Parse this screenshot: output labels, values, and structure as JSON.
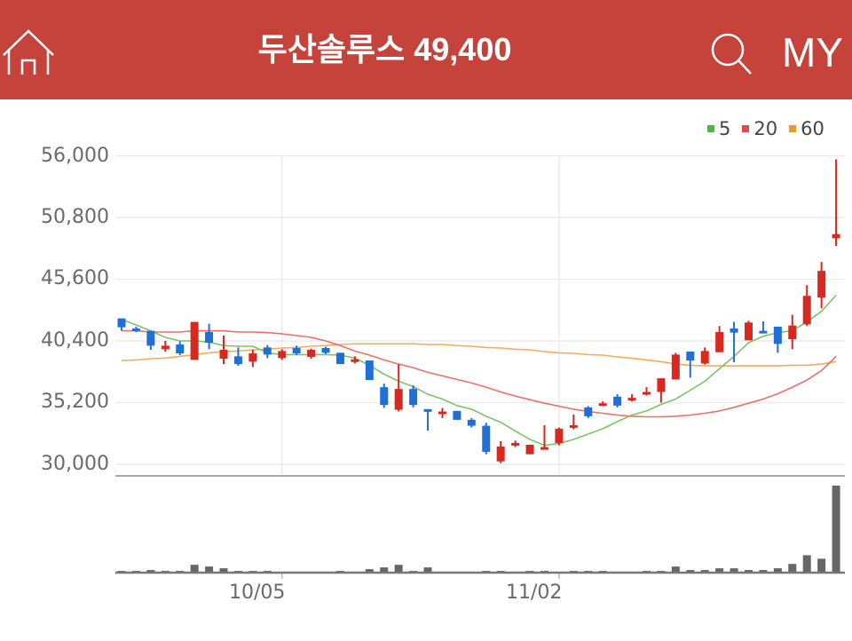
{
  "header": {
    "stock_name": "두산솔루스",
    "price": "49,400",
    "home_icon": "home-icon",
    "search_icon": "search-icon",
    "my_label": "MY"
  },
  "colors": {
    "header_bg": "#c5433a",
    "up": "#d9281f",
    "down": "#1f6fd6",
    "ma5": "#7cc46a",
    "ma20": "#ea6f6d",
    "ma60": "#f2ac5e",
    "volume": "#666666",
    "grid": "#ececec",
    "axis": "#a8a8a8"
  },
  "chart_data": {
    "type": "candlestick",
    "title": "두산솔루스 49,400",
    "xlabel": "",
    "ylabel": "",
    "grid": true,
    "ylim": [
      30000,
      56000
    ],
    "legend": [
      {
        "label": "5",
        "color": "#4cb53f"
      },
      {
        "label": "20",
        "color": "#e0484b"
      },
      {
        "label": "60",
        "color": "#f0962e"
      }
    ],
    "legend_position": "top-right",
    "y_ticks": [
      "56,000",
      "50,800",
      "45,600",
      "40,400",
      "35,200",
      "30,000"
    ],
    "y_tick_values": [
      56000,
      50800,
      45600,
      40400,
      35200,
      30000
    ],
    "x_ticks": [
      {
        "label": "10/05",
        "index": 11
      },
      {
        "label": "11/02",
        "index": 30
      }
    ],
    "candle_fields": [
      "open",
      "high",
      "low",
      "close"
    ],
    "candles": [
      [
        42300,
        42300,
        41250,
        41550
      ],
      [
        41450,
        41600,
        41150,
        41300
      ],
      [
        41250,
        41250,
        39650,
        40000
      ],
      [
        39700,
        40400,
        39500,
        40000
      ],
      [
        40100,
        40350,
        39200,
        39350
      ],
      [
        38800,
        42000,
        38800,
        42000
      ],
      [
        41150,
        41850,
        39700,
        40250
      ],
      [
        38900,
        40850,
        38450,
        39650
      ],
      [
        39100,
        39850,
        38300,
        38450
      ],
      [
        38650,
        39650,
        38200,
        39350
      ],
      [
        39850,
        40050,
        38950,
        39250
      ],
      [
        38950,
        39700,
        38800,
        39550
      ],
      [
        39800,
        40000,
        39200,
        39350
      ],
      [
        39050,
        39750,
        38900,
        39650
      ],
      [
        39800,
        39900,
        39300,
        39400
      ],
      [
        39400,
        39400,
        38450,
        38450
      ],
      [
        38700,
        39100,
        38500,
        38850
      ],
      [
        38750,
        38750,
        37100,
        37100
      ],
      [
        36500,
        36800,
        34750,
        35000
      ],
      [
        34600,
        38450,
        34450,
        36350
      ],
      [
        36350,
        36650,
        34800,
        35000
      ],
      [
        34650,
        34650,
        32850,
        34550
      ],
      [
        34250,
        34750,
        33900,
        34450
      ],
      [
        34500,
        34500,
        33750,
        33750
      ],
      [
        33750,
        33900,
        33100,
        33250
      ],
      [
        33250,
        33500,
        30850,
        31050
      ],
      [
        30250,
        31950,
        30100,
        31500
      ],
      [
        31600,
        32000,
        31450,
        31800
      ],
      [
        30850,
        31650,
        30850,
        31650
      ],
      [
        31350,
        33300,
        31250,
        31450
      ],
      [
        31800,
        33100,
        31600,
        33000
      ],
      [
        33100,
        34200,
        32950,
        33300
      ],
      [
        34800,
        34900,
        33900,
        34050
      ],
      [
        35000,
        35300,
        34900,
        35150
      ],
      [
        35700,
        35900,
        34800,
        34950
      ],
      [
        35450,
        35900,
        35300,
        35600
      ],
      [
        35900,
        36500,
        35800,
        36100
      ],
      [
        36100,
        37250,
        35200,
        37250
      ],
      [
        37150,
        39400,
        37150,
        39250
      ],
      [
        39500,
        39500,
        37300,
        38750
      ],
      [
        38500,
        39850,
        38400,
        39550
      ],
      [
        39450,
        41650,
        39450,
        41150
      ],
      [
        41450,
        42000,
        38600,
        41100
      ],
      [
        40450,
        42100,
        40450,
        41950
      ],
      [
        41250,
        42050,
        41150,
        41150
      ],
      [
        41600,
        41600,
        39400,
        40150
      ],
      [
        40550,
        42600,
        39700,
        41700
      ],
      [
        41800,
        45100,
        41650,
        44200
      ],
      [
        44050,
        47050,
        43150,
        46300
      ],
      [
        49050,
        55700,
        48400,
        49400
      ]
    ],
    "series": [
      {
        "name": "5",
        "color": "#7cc46a",
        "values": [
          42200,
          41750,
          41250,
          40700,
          40400,
          40400,
          40300,
          40000,
          39950,
          39950,
          39400,
          39250,
          39250,
          39250,
          39250,
          39200,
          38950,
          38350,
          37600,
          37000,
          36550,
          35900,
          35500,
          34950,
          34650,
          34050,
          33550,
          32800,
          32100,
          31600,
          31750,
          32100,
          32550,
          33000,
          33600,
          34150,
          34500,
          35050,
          35500,
          36250,
          37000,
          38050,
          39100,
          40250,
          40800,
          41100,
          41250,
          42000,
          42900,
          44250
        ]
      },
      {
        "name": "20",
        "color": "#ea6f6d",
        "values": [
          41250,
          41250,
          41150,
          41150,
          41150,
          41250,
          41250,
          41250,
          41150,
          41150,
          41100,
          41000,
          40850,
          40700,
          40400,
          40000,
          39550,
          39200,
          38800,
          38450,
          38150,
          37750,
          37450,
          37150,
          36850,
          36500,
          36100,
          35750,
          35450,
          35150,
          34900,
          34650,
          34450,
          34300,
          34150,
          34050,
          34000,
          34000,
          34050,
          34150,
          34300,
          34500,
          34800,
          35150,
          35500,
          35950,
          36500,
          37100,
          37900,
          39100
        ]
      },
      {
        "name": "60",
        "color": "#f2ac5e",
        "values": [
          38750,
          38800,
          38900,
          38950,
          39100,
          39250,
          39400,
          39500,
          39550,
          39650,
          39700,
          39800,
          39850,
          39950,
          40000,
          40100,
          40150,
          40150,
          40150,
          40150,
          40150,
          40100,
          40100,
          40000,
          39950,
          39850,
          39800,
          39700,
          39650,
          39500,
          39400,
          39350,
          39250,
          39200,
          39050,
          38950,
          38800,
          38650,
          38450,
          38350,
          38300,
          38300,
          38300,
          38300,
          38300,
          38300,
          38350,
          38350,
          38450,
          38650
        ]
      }
    ],
    "volume_relative": [
      2,
      2,
      3,
      2,
      2,
      9,
      7,
      5,
      2,
      2,
      2,
      0,
      0,
      0,
      0,
      2,
      0,
      4,
      6,
      9,
      2,
      6,
      0,
      0,
      0,
      2,
      2,
      0,
      2,
      2,
      0,
      2,
      2,
      2,
      0,
      0,
      2,
      2,
      7,
      3,
      3,
      5,
      5,
      3,
      3,
      5,
      10,
      20,
      16,
      100
    ]
  }
}
